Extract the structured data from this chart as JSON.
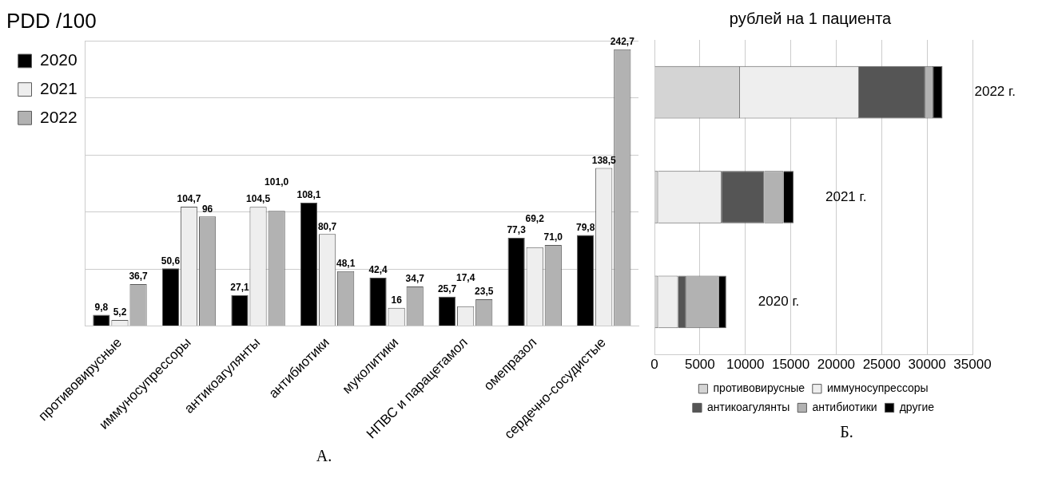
{
  "chart_data": [
    {
      "type": "bar",
      "title": "PDD /100",
      "categories": [
        "противовирусные",
        "иммуносупрессоры",
        "антикоагулянты",
        "антибиотики",
        "муколитики",
        "НПВС и парацетамол",
        "омепразол",
        "сердечно-сосудистые"
      ],
      "series": [
        {
          "name": "2020",
          "color": "#000000",
          "values": [
            9.8,
            50.6,
            27.1,
            108.1,
            42.4,
            25.7,
            77.3,
            79.8
          ],
          "value_labels": [
            "9,8",
            "50,6",
            "27,1",
            "108,1",
            "42,4",
            "25,7",
            "77,3",
            "79,8"
          ]
        },
        {
          "name": "2021",
          "color": "#eeeeee",
          "values": [
            5.2,
            104.7,
            104.5,
            80.7,
            16,
            17.4,
            69.2,
            138.5
          ],
          "value_labels": [
            "5,2",
            "104,7",
            "104,5",
            "80,7",
            "16",
            "17,4",
            "69,2",
            "138,5"
          ]
        },
        {
          "name": "2022",
          "color": "#b2b2b2",
          "values": [
            36.7,
            96,
            101.0,
            48.1,
            34.7,
            23.5,
            71.0,
            242.7
          ],
          "value_labels": [
            "36,7",
            "96",
            "101,0",
            "48,1",
            "34,7",
            "23,5",
            "71,0",
            "242,7"
          ]
        }
      ],
      "grid": "y",
      "legend": "left",
      "tick_labels": "x",
      "annotations": [
        "А."
      ]
    },
    {
      "type": "bar",
      "orientation": "horizontal",
      "stacked": true,
      "title": "рублей на 1 пациента",
      "categories": [
        "2022 г.",
        "2021 г.",
        "2020 г."
      ],
      "series": [
        {
          "name": "противовирусные",
          "color": "#d4d4d4",
          "values": [
            9400,
            400,
            400
          ]
        },
        {
          "name": "иммуносупрессоры",
          "color": "#eeeeee",
          "values": [
            13100,
            7000,
            2200
          ]
        },
        {
          "name": "антикоагулянты",
          "color": "#555555",
          "values": [
            7300,
            4700,
            900
          ]
        },
        {
          "name": "антибиотики",
          "color": "#b2b2b2",
          "values": [
            900,
            2100,
            3600
          ]
        },
        {
          "name": "другие",
          "color": "#000000",
          "values": [
            1000,
            1100,
            800
          ]
        }
      ],
      "xlim": [
        0,
        35000
      ],
      "xticks": [
        0,
        5000,
        10000,
        15000,
        20000,
        25000,
        30000,
        35000
      ],
      "grid": "x",
      "legend": "bottom",
      "tick_labels": "x",
      "annotations": [
        "Б."
      ]
    }
  ]
}
